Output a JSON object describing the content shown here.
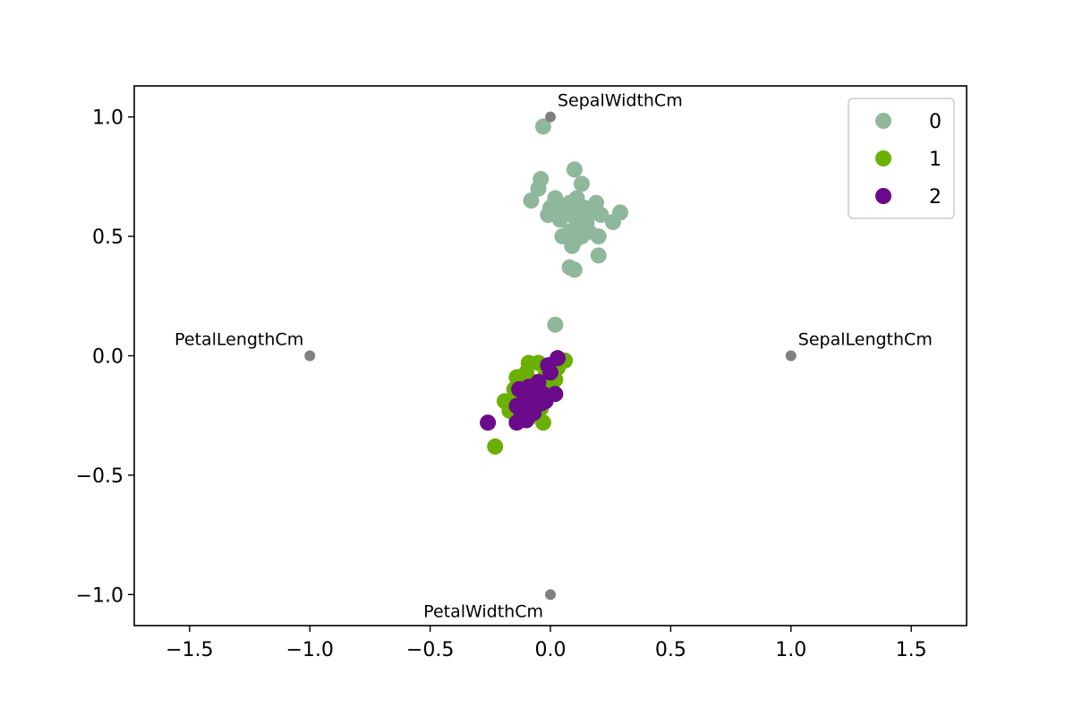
{
  "chart_data": {
    "type": "scatter",
    "title": "",
    "xlabel": "",
    "ylabel": "",
    "xlim": [
      -1.73,
      1.73
    ],
    "ylim": [
      -1.13,
      1.13
    ],
    "x_ticks": [
      -1.5,
      -1.0,
      -0.5,
      0.0,
      0.5,
      1.0,
      1.5
    ],
    "x_tick_labels": [
      "−1.5",
      "−1.0",
      "−0.5",
      "0.0",
      "0.5",
      "1.0",
      "1.5"
    ],
    "y_ticks": [
      1.0,
      0.5,
      0.0,
      -0.5,
      -1.0
    ],
    "y_tick_labels": [
      "1.0",
      "0.5",
      "0.0",
      "−0.5",
      "−1.0"
    ],
    "grid": false,
    "legend_position": "top-right",
    "anchors": {
      "color": "#808080",
      "points": [
        {
          "label": "SepalLengthCm",
          "x": 1.0,
          "y": 0.0
        },
        {
          "label": "SepalWidthCm",
          "x": 0.0,
          "y": 1.0
        },
        {
          "label": "PetalLengthCm",
          "x": -1.0,
          "y": 0.0
        },
        {
          "label": "PetalWidthCm",
          "x": 0.0,
          "y": -1.0
        }
      ]
    },
    "series": [
      {
        "name": "0",
        "color": "#8fb79c",
        "points": [
          [
            -0.03,
            0.96
          ],
          [
            0.1,
            0.78
          ],
          [
            -0.04,
            0.74
          ],
          [
            -0.05,
            0.7
          ],
          [
            -0.08,
            0.65
          ],
          [
            0.13,
            0.72
          ],
          [
            0.02,
            0.66
          ],
          [
            0.0,
            0.62
          ],
          [
            0.08,
            0.64
          ],
          [
            0.11,
            0.66
          ],
          [
            0.14,
            0.62
          ],
          [
            0.19,
            0.64
          ],
          [
            -0.01,
            0.59
          ],
          [
            0.04,
            0.57
          ],
          [
            0.1,
            0.58
          ],
          [
            0.15,
            0.56
          ],
          [
            0.21,
            0.59
          ],
          [
            0.29,
            0.6
          ],
          [
            0.26,
            0.56
          ],
          [
            0.12,
            0.54
          ],
          [
            0.08,
            0.52
          ],
          [
            0.05,
            0.5
          ],
          [
            0.16,
            0.52
          ],
          [
            0.13,
            0.5
          ],
          [
            0.1,
            0.48
          ],
          [
            0.2,
            0.5
          ],
          [
            0.09,
            0.46
          ],
          [
            0.2,
            0.42
          ],
          [
            0.08,
            0.37
          ],
          [
            0.1,
            0.36
          ],
          [
            0.02,
            0.13
          ],
          [
            0.06,
            0.61
          ],
          [
            0.17,
            0.6
          ],
          [
            0.12,
            0.62
          ]
        ]
      },
      {
        "name": "1",
        "color": "#6ab000",
        "points": [
          [
            -0.09,
            -0.03
          ],
          [
            -0.05,
            -0.03
          ],
          [
            0.06,
            -0.02
          ],
          [
            0.03,
            -0.05
          ],
          [
            -0.14,
            -0.09
          ],
          [
            -0.1,
            -0.07
          ],
          [
            -0.02,
            -0.08
          ],
          [
            -0.12,
            -0.12
          ],
          [
            -0.06,
            -0.11
          ],
          [
            0.02,
            -0.1
          ],
          [
            -0.15,
            -0.14
          ],
          [
            -0.19,
            -0.19
          ],
          [
            -0.13,
            -0.17
          ],
          [
            -0.08,
            -0.19
          ],
          [
            -0.03,
            -0.18
          ],
          [
            -0.17,
            -0.23
          ],
          [
            -0.11,
            -0.22
          ],
          [
            -0.07,
            -0.25
          ],
          [
            -0.04,
            -0.22
          ],
          [
            -0.03,
            -0.28
          ],
          [
            -0.23,
            -0.38
          ],
          [
            -0.14,
            -0.27
          ],
          [
            -0.1,
            -0.15
          ],
          [
            -0.01,
            -0.13
          ]
        ]
      },
      {
        "name": "2",
        "color": "#6b0a8b",
        "points": [
          [
            0.03,
            -0.01
          ],
          [
            -0.01,
            -0.04
          ],
          [
            0.0,
            -0.07
          ],
          [
            -0.05,
            -0.11
          ],
          [
            -0.09,
            -0.13
          ],
          [
            -0.13,
            -0.14
          ],
          [
            -0.06,
            -0.15
          ],
          [
            -0.03,
            -0.16
          ],
          [
            0.02,
            -0.16
          ],
          [
            -0.1,
            -0.17
          ],
          [
            -0.14,
            -0.21
          ],
          [
            -0.08,
            -0.21
          ],
          [
            -0.04,
            -0.2
          ],
          [
            -0.12,
            -0.24
          ],
          [
            -0.07,
            -0.24
          ],
          [
            -0.26,
            -0.28
          ],
          [
            -0.14,
            -0.28
          ],
          [
            -0.1,
            -0.27
          ],
          [
            -0.02,
            -0.19
          ],
          [
            -0.11,
            -0.19
          ]
        ]
      }
    ]
  }
}
